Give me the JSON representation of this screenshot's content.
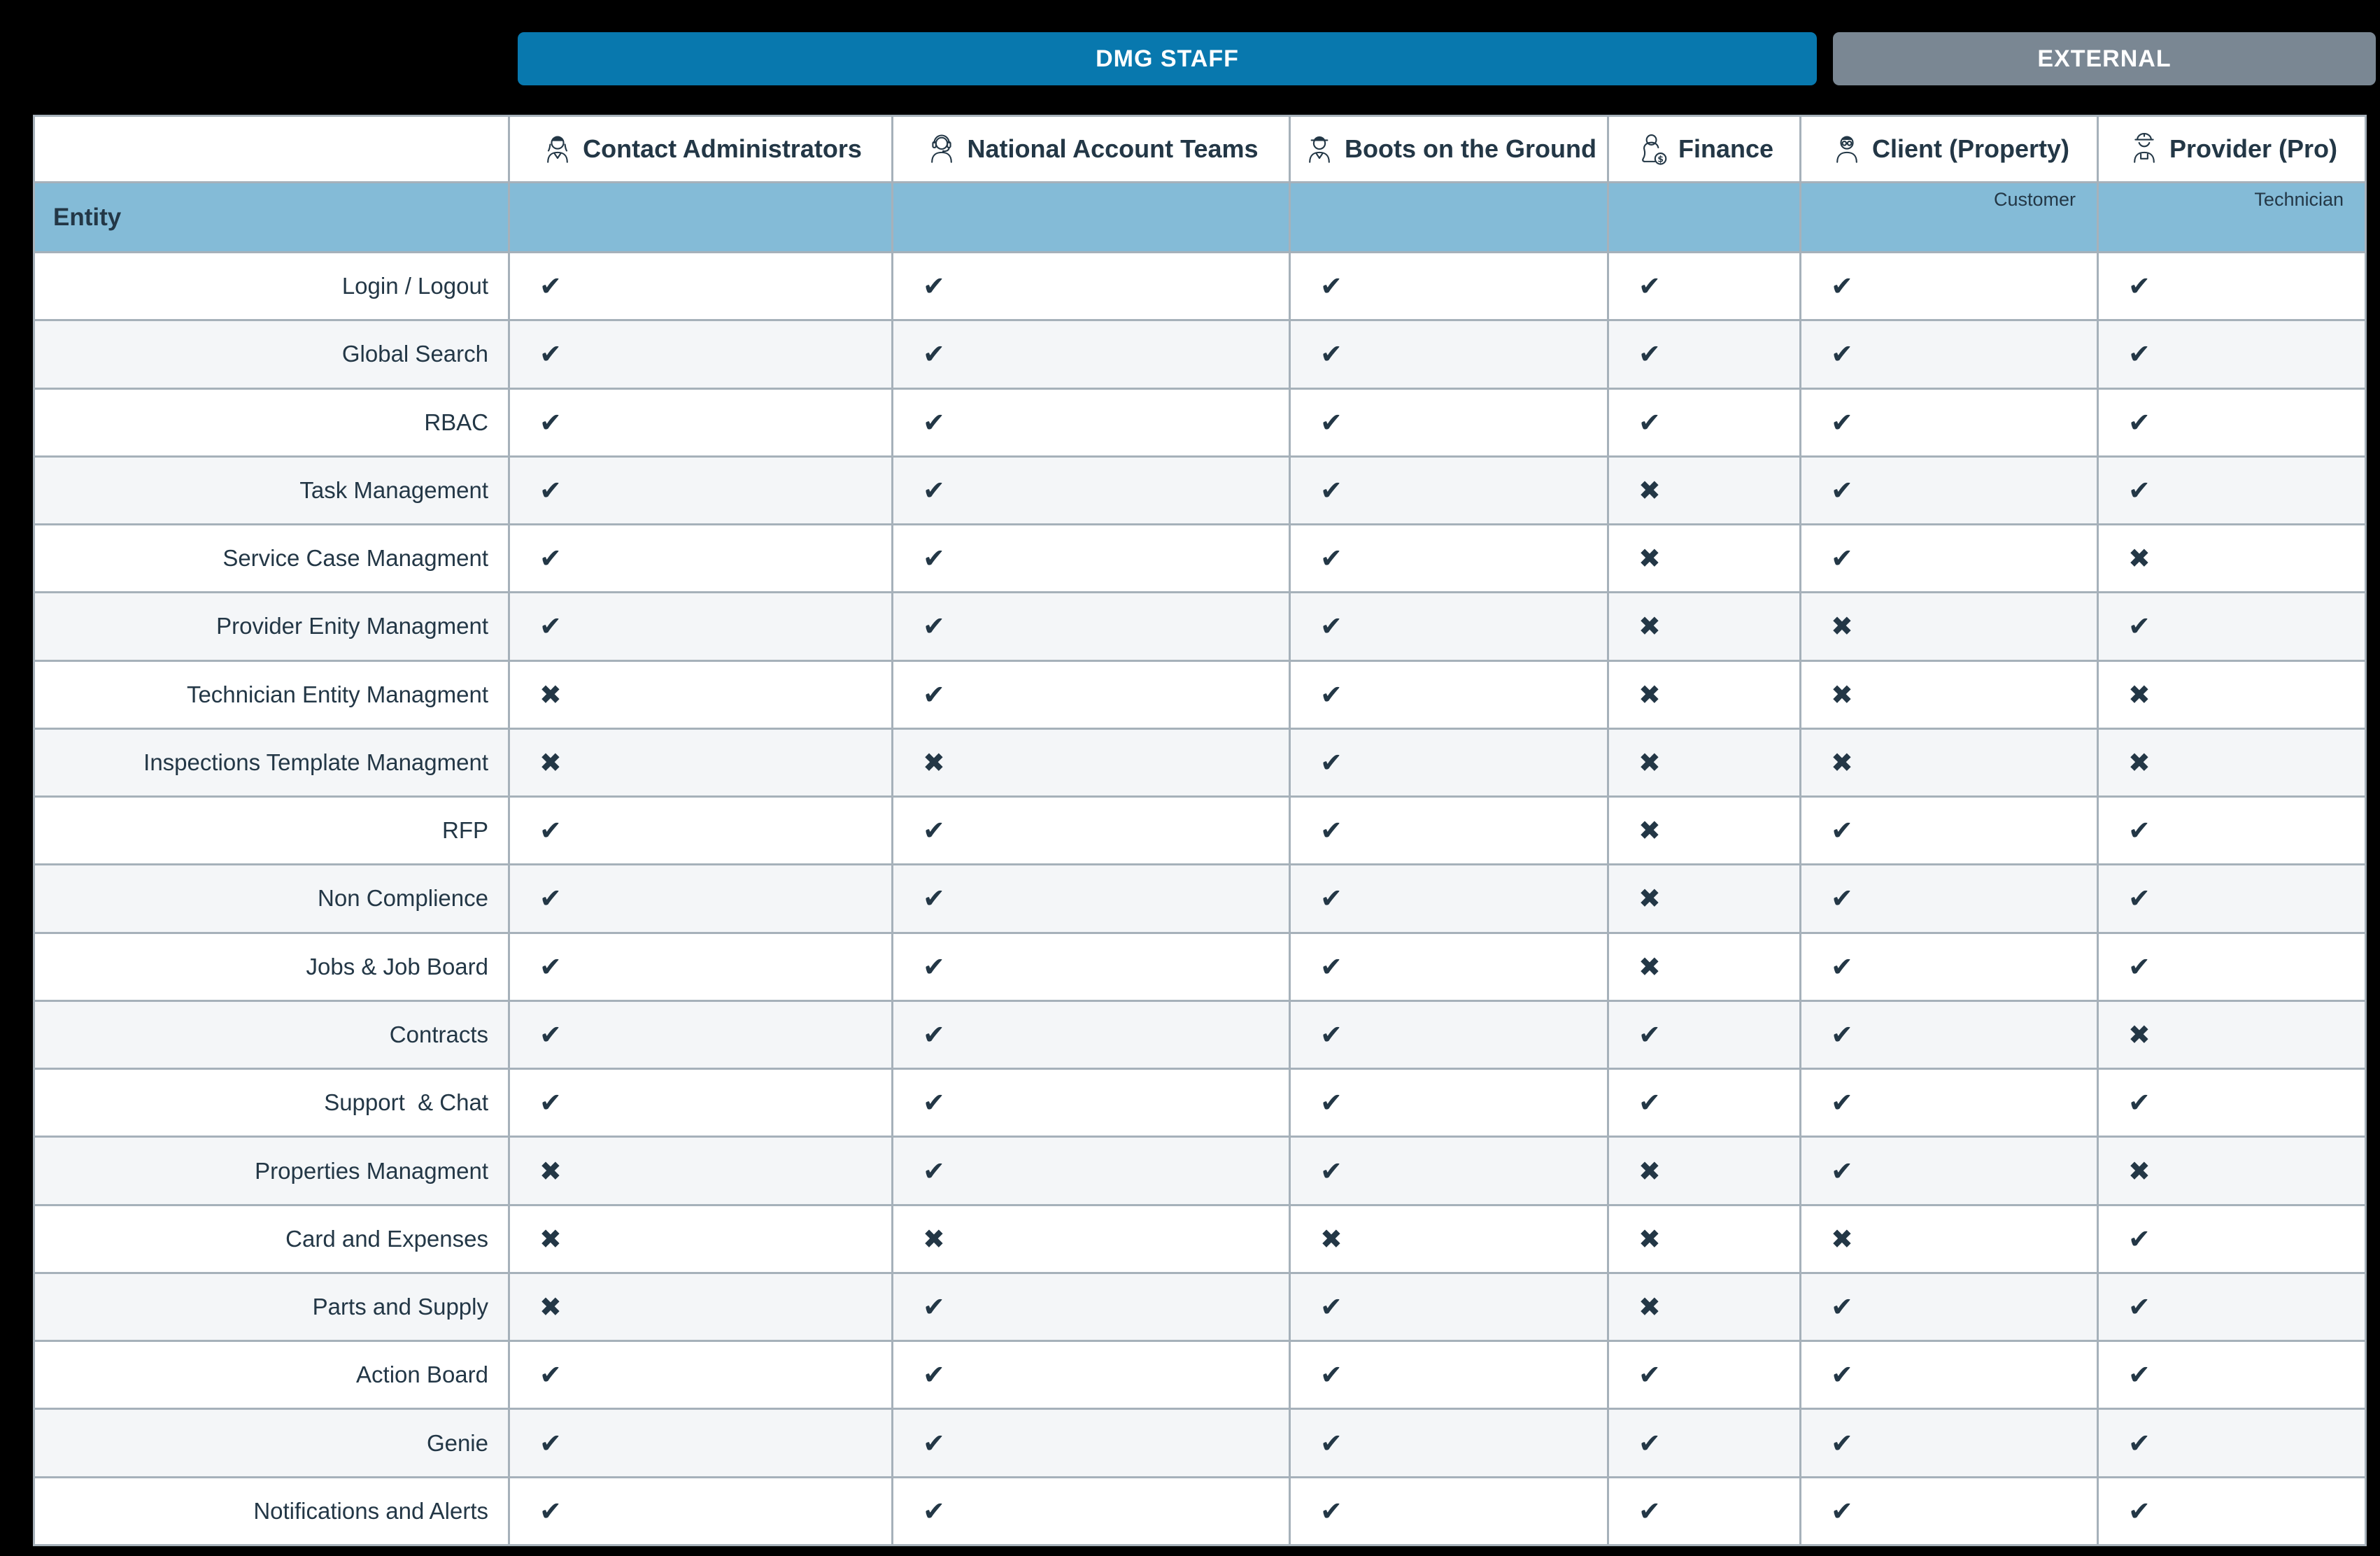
{
  "tabs": {
    "dmg_staff": "DMG STAFF",
    "external": "EXTERNAL"
  },
  "colors": {
    "tab_active_bg": "#0878ae",
    "tab_inactive_bg": "#7a8793",
    "entity_row_bg": "#84bbd7",
    "row_bg": "#ffffff",
    "row_alt_bg": "#f4f6f8",
    "grid_line": "#a6b1ba",
    "text": "#233746",
    "page_bg": "#000000"
  },
  "table": {
    "entity_header": "Entity",
    "check_symbol": "✔",
    "cross_symbol": "✖",
    "columns": [
      {
        "label": "Contact Administrators",
        "icon": "office-woman-icon",
        "sublabel": ""
      },
      {
        "label": "National Account Teams",
        "icon": "support-agent-icon",
        "sublabel": ""
      },
      {
        "label": "Boots on the Ground",
        "icon": "field-worker-icon",
        "sublabel": ""
      },
      {
        "label": "Finance",
        "icon": "finance-person-icon",
        "sublabel": ""
      },
      {
        "label": "Client (Property)",
        "icon": "client-man-icon",
        "sublabel": "Customer"
      },
      {
        "label": "Provider (Pro)",
        "icon": "construction-worker-icon",
        "sublabel": "Technician"
      }
    ],
    "rows": [
      {
        "entity": "Login / Logout",
        "access": [
          1,
          1,
          1,
          1,
          1,
          1
        ]
      },
      {
        "entity": "Global Search",
        "access": [
          1,
          1,
          1,
          1,
          1,
          1
        ]
      },
      {
        "entity": "RBAC",
        "access": [
          1,
          1,
          1,
          1,
          1,
          1
        ]
      },
      {
        "entity": "Task Management",
        "access": [
          1,
          1,
          1,
          0,
          1,
          1
        ]
      },
      {
        "entity": "Service Case Managment",
        "access": [
          1,
          1,
          1,
          0,
          1,
          0
        ]
      },
      {
        "entity": "Provider Enity Managment",
        "access": [
          1,
          1,
          1,
          0,
          0,
          1
        ]
      },
      {
        "entity": "Technician Entity Managment",
        "access": [
          0,
          1,
          1,
          0,
          0,
          0
        ]
      },
      {
        "entity": "Inspections Template Managment",
        "access": [
          0,
          0,
          1,
          0,
          0,
          0
        ]
      },
      {
        "entity": "RFP",
        "access": [
          1,
          1,
          1,
          0,
          1,
          1
        ]
      },
      {
        "entity": "Non Complience",
        "access": [
          1,
          1,
          1,
          0,
          1,
          1
        ]
      },
      {
        "entity": "Jobs & Job Board",
        "access": [
          1,
          1,
          1,
          0,
          1,
          1
        ]
      },
      {
        "entity": "Contracts",
        "access": [
          1,
          1,
          1,
          1,
          1,
          0
        ]
      },
      {
        "entity": "Support  & Chat",
        "access": [
          1,
          1,
          1,
          1,
          1,
          1
        ]
      },
      {
        "entity": "Properties Managment",
        "access": [
          0,
          1,
          1,
          0,
          1,
          0
        ]
      },
      {
        "entity": "Card and Expenses",
        "access": [
          0,
          0,
          0,
          0,
          0,
          1
        ]
      },
      {
        "entity": "Parts and Supply",
        "access": [
          0,
          1,
          1,
          0,
          1,
          1
        ]
      },
      {
        "entity": "Action Board",
        "access": [
          1,
          1,
          1,
          1,
          1,
          1
        ]
      },
      {
        "entity": "Genie",
        "access": [
          1,
          1,
          1,
          1,
          1,
          1
        ]
      },
      {
        "entity": "Notifications and Alerts",
        "access": [
          1,
          1,
          1,
          1,
          1,
          1
        ]
      }
    ]
  }
}
